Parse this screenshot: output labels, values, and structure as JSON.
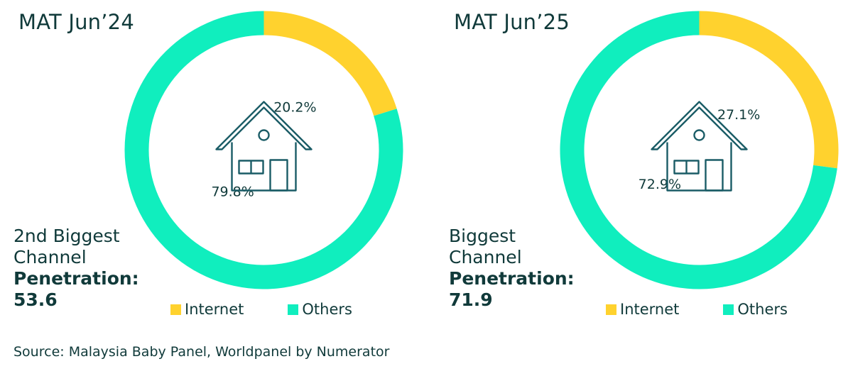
{
  "colors": {
    "internet": "#FFD22E",
    "others": "#10EEBE",
    "text": "#103A3A",
    "icon": "#1A5C66"
  },
  "icons": {
    "center": "house-icon"
  },
  "chart_data": [
    {
      "type": "pie",
      "title": "MAT Jun’24",
      "labels": [
        "Internet",
        "Others"
      ],
      "values": [
        20.2,
        79.8
      ],
      "value_labels": [
        "20.2%",
        "79.8%"
      ],
      "legend": "bottom",
      "subtitle_lines": [
        "2nd Biggest",
        "Channel"
      ],
      "penetration_label": "Penetration:",
      "penetration_value": "53.6"
    },
    {
      "type": "pie",
      "title": "MAT Jun’25",
      "labels": [
        "Internet",
        "Others"
      ],
      "values": [
        27.1,
        72.9
      ],
      "value_labels": [
        "27.1%",
        "72.9%"
      ],
      "legend": "bottom",
      "subtitle_lines": [
        "Biggest",
        "Channel"
      ],
      "penetration_label": "Penetration:",
      "penetration_value": "71.9"
    }
  ],
  "source": "Source: Malaysia Baby Panel, Worldpanel by Numerator"
}
